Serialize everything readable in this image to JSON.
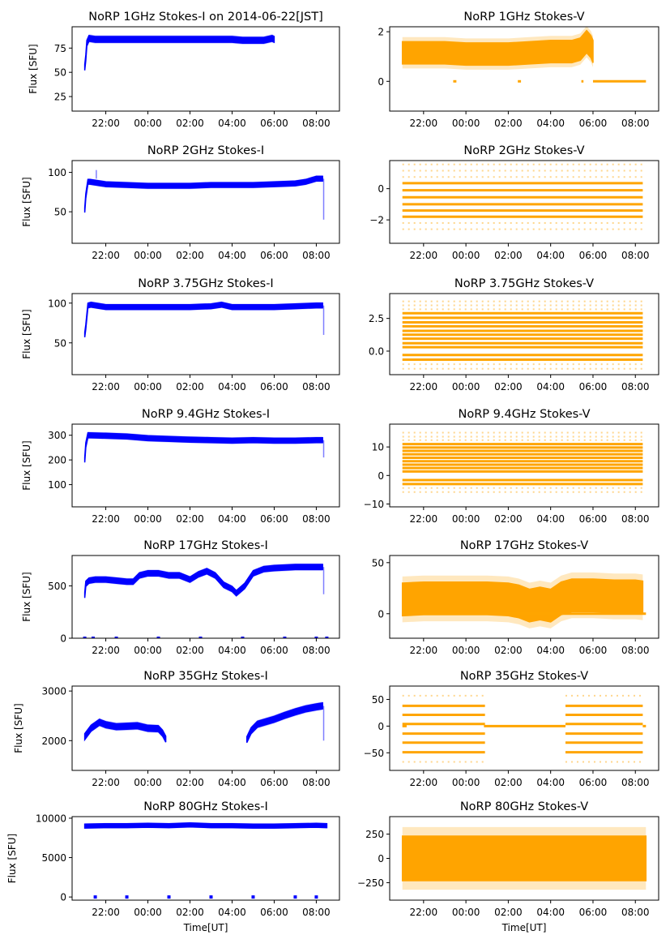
{
  "figure": {
    "xlabel": "Time[UT]",
    "ylabel": "Flux [SFU]"
  },
  "chart_data": [
    {
      "type": "scatter",
      "panel": "1GHz-I",
      "color": "#0000ff",
      "title": "NoRP 1GHz Stokes-I on 2014-06-22[JST]",
      "xlabel": "",
      "ylabel": "Flux [SFU]",
      "xticks": [
        "22:00",
        "00:00",
        "02:00",
        "04:00",
        "06:00",
        "08:00"
      ],
      "xlim_hours": [
        20.4,
        33.1
      ],
      "ylim": [
        10,
        97
      ],
      "yticks": [
        25,
        50,
        75
      ],
      "series": [
        {
          "name": "Stokes-I",
          "x_hours": [
            21.0,
            21.05,
            21.1,
            21.2,
            21.5,
            22.0,
            23.0,
            24.0,
            25.0,
            26.0,
            27.0,
            28.0,
            28.5,
            29.0,
            29.5,
            29.9,
            30.0
          ],
          "values": [
            55,
            65,
            80,
            85,
            84,
            84,
            84,
            84,
            84,
            84,
            84,
            84,
            83,
            83,
            83,
            85,
            84
          ],
          "band": 3
        }
      ],
      "dropouts": []
    },
    {
      "type": "scatter",
      "panel": "1GHz-V",
      "color": "#ffa500",
      "title": "NoRP 1GHz Stokes-V",
      "xticks": [
        "22:00",
        "00:00",
        "02:00",
        "04:00",
        "06:00",
        "08:00"
      ],
      "xlim_hours": [
        20.4,
        33.1
      ],
      "ylim": [
        -1.2,
        2.2
      ],
      "yticks": [
        0,
        2
      ],
      "series": [
        {
          "name": "Stokes-V",
          "x_hours": [
            21.0,
            22.0,
            23.0,
            24.0,
            25.0,
            26.0,
            27.0,
            28.0,
            29.0,
            29.4,
            29.7,
            29.9,
            30.0
          ],
          "values": [
            1.15,
            1.15,
            1.15,
            1.1,
            1.1,
            1.1,
            1.15,
            1.2,
            1.2,
            1.3,
            1.6,
            1.4,
            1.2
          ],
          "band": 0.45
        }
      ],
      "zero_segments": [
        [
          23.4,
          23.55
        ],
        [
          26.45,
          26.6
        ],
        [
          29.45,
          29.55
        ],
        [
          30.0,
          32.5
        ]
      ]
    },
    {
      "type": "scatter",
      "panel": "2GHz-I",
      "color": "#0000ff",
      "title": "NoRP 2GHz Stokes-I",
      "xticks": [
        "22:00",
        "00:00",
        "02:00",
        "04:00",
        "06:00",
        "08:00"
      ],
      "xlim_hours": [
        20.4,
        33.1
      ],
      "ylim": [
        10,
        115
      ],
      "yticks": [
        50,
        100
      ],
      "series": [
        {
          "name": "Stokes-I",
          "x_hours": [
            21.0,
            21.05,
            21.15,
            21.25,
            21.5,
            22.0,
            23.0,
            24.0,
            25.0,
            26.0,
            27.0,
            28.0,
            29.0,
            30.0,
            31.0,
            31.5,
            32.0,
            32.3
          ],
          "values": [
            52,
            70,
            88,
            88,
            87,
            85,
            84,
            83,
            83,
            83,
            84,
            84,
            84,
            85,
            86,
            88,
            92,
            92
          ],
          "band": 3
        }
      ],
      "spikes": [
        [
          21.55,
          103
        ],
        [
          32.35,
          40
        ]
      ]
    },
    {
      "type": "scatter",
      "panel": "2GHz-V",
      "color": "#ffa500",
      "title": "NoRP 2GHz Stokes-V",
      "xticks": [
        "22:00",
        "00:00",
        "02:00",
        "04:00",
        "06:00",
        "08:00"
      ],
      "xlim_hours": [
        20.4,
        33.1
      ],
      "ylim": [
        -3.5,
        1.8
      ],
      "yticks": [
        0,
        -2
      ],
      "levels": [
        0.35,
        -0.1,
        -0.55,
        -1.0,
        -1.4,
        -1.8
      ],
      "sparse_levels": [
        0.75,
        -2.2,
        -2.6,
        1.15,
        1.55
      ],
      "xrange_hours": [
        21.0,
        32.35
      ]
    },
    {
      "type": "scatter",
      "panel": "3.75GHz-I",
      "color": "#0000ff",
      "title": "NoRP 3.75GHz Stokes-I",
      "xticks": [
        "22:00",
        "00:00",
        "02:00",
        "04:00",
        "06:00",
        "08:00"
      ],
      "xlim_hours": [
        20.4,
        33.1
      ],
      "ylim": [
        10,
        112
      ],
      "yticks": [
        50,
        100
      ],
      "series": [
        {
          "name": "Stokes-I",
          "x_hours": [
            21.0,
            21.05,
            21.15,
            21.3,
            22.0,
            23.0,
            24.0,
            25.0,
            26.0,
            27.0,
            27.5,
            28.0,
            29.0,
            30.0,
            31.0,
            32.0,
            32.3
          ],
          "values": [
            60,
            70,
            97,
            98,
            95,
            95,
            95,
            95,
            95,
            96,
            98,
            95,
            95,
            95,
            96,
            97,
            97
          ],
          "band": 3
        }
      ],
      "spikes": [
        [
          32.35,
          60
        ]
      ]
    },
    {
      "type": "scatter",
      "panel": "3.75GHz-V",
      "color": "#ffa500",
      "title": "NoRP 3.75GHz Stokes-V",
      "xticks": [
        "22:00",
        "00:00",
        "02:00",
        "04:00",
        "06:00",
        "08:00"
      ],
      "xlim_hours": [
        20.4,
        33.1
      ],
      "ylim": [
        -1.8,
        4.4
      ],
      "yticks": [
        "0.0",
        "2.5"
      ],
      "levels": [
        2.9,
        2.55,
        2.2,
        1.9,
        1.55,
        1.25,
        0.95,
        0.6,
        0.3,
        -0.3,
        -0.65
      ],
      "sparse_levels": [
        3.2,
        3.5,
        -1.0,
        -1.35,
        3.8
      ],
      "xrange_hours": [
        21.0,
        32.35
      ]
    },
    {
      "type": "scatter",
      "panel": "9.4GHz-I",
      "color": "#0000ff",
      "title": "NoRP 9.4GHz Stokes-I",
      "xticks": [
        "22:00",
        "00:00",
        "02:00",
        "04:00",
        "06:00",
        "08:00"
      ],
      "xlim_hours": [
        20.4,
        33.1
      ],
      "ylim": [
        10,
        345
      ],
      "yticks": [
        100,
        200,
        300
      ],
      "series": [
        {
          "name": "Stokes-I",
          "x_hours": [
            21.0,
            21.05,
            21.15,
            22.0,
            23.0,
            24.0,
            25.0,
            26.0,
            27.0,
            28.0,
            29.0,
            30.0,
            31.0,
            32.0,
            32.3
          ],
          "values": [
            200,
            260,
            300,
            298,
            295,
            288,
            285,
            282,
            280,
            278,
            280,
            278,
            278,
            280,
            280
          ],
          "band": 10
        }
      ],
      "spikes": [
        [
          32.35,
          210
        ]
      ]
    },
    {
      "type": "scatter",
      "panel": "9.4GHz-V",
      "color": "#ffa500",
      "title": "NoRP 9.4GHz Stokes-V",
      "xticks": [
        "22:00",
        "00:00",
        "02:00",
        "04:00",
        "06:00",
        "08:00"
      ],
      "xlim_hours": [
        20.4,
        33.1
      ],
      "ylim": [
        -11,
        18
      ],
      "yticks": [
        -10,
        0,
        10
      ],
      "levels": [
        11,
        9.8,
        8.6,
        7.4,
        6.2,
        5,
        3.8,
        2.6,
        1.4,
        -1.6,
        -3
      ],
      "sparse_levels": [
        12.4,
        13.6,
        -4.4,
        -5.8,
        15
      ],
      "xrange_hours": [
        21.0,
        32.35
      ]
    },
    {
      "type": "scatter",
      "panel": "17GHz-I",
      "color": "#0000ff",
      "title": "NoRP 17GHz Stokes-I",
      "xticks": [
        "22:00",
        "00:00",
        "02:00",
        "04:00",
        "06:00",
        "08:00"
      ],
      "xlim_hours": [
        20.4,
        33.1
      ],
      "ylim": [
        0,
        790
      ],
      "yticks": [
        0,
        500
      ],
      "series": [
        {
          "name": "Stokes-I",
          "x_hours": [
            21.0,
            21.05,
            21.2,
            21.5,
            22.0,
            22.5,
            23.0,
            23.3,
            23.6,
            24.0,
            24.5,
            25.0,
            25.5,
            26.0,
            26.4,
            26.8,
            27.2,
            27.6,
            28.0,
            28.2,
            28.6,
            29.0,
            29.5,
            30.0,
            31.0,
            32.0,
            32.3
          ],
          "values": [
            410,
            520,
            550,
            560,
            560,
            550,
            540,
            540,
            600,
            620,
            620,
            600,
            600,
            560,
            610,
            640,
            600,
            510,
            470,
            430,
            500,
            620,
            660,
            670,
            680,
            680,
            680
          ],
          "band": 25
        }
      ],
      "dropouts": [
        21.0,
        21.4,
        22.5,
        24.5,
        26.5,
        28.5,
        30.5,
        32.0,
        32.5
      ],
      "spikes": [
        [
          32.35,
          420
        ]
      ]
    },
    {
      "type": "scatter",
      "panel": "17GHz-V",
      "color": "#ffa500",
      "title": "NoRP 17GHz Stokes-V",
      "xticks": [
        "22:00",
        "00:00",
        "02:00",
        "04:00",
        "06:00",
        "08:00"
      ],
      "xlim_hours": [
        20.4,
        33.1
      ],
      "ylim": [
        -24,
        57
      ],
      "yticks": [
        0,
        50
      ],
      "series": [
        {
          "name": "Stokes-V",
          "x_hours": [
            21.0,
            22.0,
            23.0,
            24.0,
            25.0,
            26.0,
            26.5,
            27.0,
            27.5,
            28.0,
            28.5,
            29.0,
            30.0,
            31.0,
            32.0,
            32.35
          ],
          "values": [
            14,
            15,
            15,
            15,
            15,
            14,
            12,
            8,
            10,
            8,
            15,
            18,
            18,
            17,
            17,
            16
          ],
          "band": 16
        }
      ],
      "zero_segments": [
        [
          21.0,
          32.5
        ]
      ]
    },
    {
      "type": "scatter",
      "panel": "35GHz-I",
      "color": "#0000ff",
      "title": "NoRP 35GHz Stokes-I",
      "xticks": [
        "22:00",
        "00:00",
        "02:00",
        "04:00",
        "06:00",
        "08:00"
      ],
      "xlim_hours": [
        20.4,
        33.1
      ],
      "ylim": [
        1400,
        3100
      ],
      "yticks": [
        2000,
        3000
      ],
      "series": [
        {
          "name": "Stokes-I seg1",
          "x_hours": [
            21.0,
            21.3,
            21.7,
            22.0,
            22.5,
            23.0,
            23.5,
            24.0,
            24.5,
            24.7,
            24.85
          ],
          "values": [
            2080,
            2250,
            2370,
            2320,
            2280,
            2290,
            2300,
            2250,
            2240,
            2150,
            2030
          ],
          "band": 60
        },
        {
          "name": "Stokes-I seg2",
          "x_hours": [
            28.7,
            28.9,
            29.2,
            29.6,
            30.0,
            30.5,
            31.0,
            31.5,
            32.0,
            32.3
          ],
          "values": [
            2020,
            2200,
            2330,
            2380,
            2430,
            2510,
            2580,
            2640,
            2680,
            2700
          ],
          "band": 60
        }
      ],
      "spikes": [
        [
          32.35,
          2000
        ]
      ]
    },
    {
      "type": "scatter",
      "panel": "35GHz-V",
      "color": "#ffa500",
      "title": "NoRP 35GHz Stokes-V",
      "xticks": [
        "22:00",
        "00:00",
        "02:00",
        "04:00",
        "06:00",
        "08:00"
      ],
      "xlim_hours": [
        20.4,
        33.1
      ],
      "ylim": [
        -83,
        75
      ],
      "yticks": [
        -50,
        0,
        50
      ],
      "levels": [
        38,
        21,
        4,
        -14,
        -31,
        -49
      ],
      "sparse_levels": [
        57,
        -67
      ],
      "xranges_hours": [
        [
          21.0,
          24.9
        ],
        [
          28.7,
          32.35
        ]
      ],
      "zero_segments": [
        [
          21.0,
          21.2
        ],
        [
          24.85,
          28.7
        ],
        [
          32.35,
          32.5
        ]
      ]
    },
    {
      "type": "scatter",
      "panel": "80GHz-I",
      "color": "#0000ff",
      "title": "NoRP 80GHz Stokes-I",
      "xlabel": "Time[UT]",
      "xticks": [
        "22:00",
        "00:00",
        "02:00",
        "04:00",
        "06:00",
        "08:00"
      ],
      "xlim_hours": [
        20.4,
        33.1
      ],
      "ylim": [
        -400,
        10200
      ],
      "yticks": [
        0,
        5000,
        10000
      ],
      "series": [
        {
          "name": "Stokes-I",
          "x_hours": [
            21.0,
            22.0,
            23.0,
            24.0,
            25.0,
            26.0,
            27.0,
            28.0,
            29.0,
            30.0,
            31.0,
            32.0,
            32.5
          ],
          "values": [
            9000,
            9050,
            9050,
            9100,
            9050,
            9150,
            9050,
            9050,
            9000,
            9000,
            9050,
            9100,
            9050
          ],
          "band": 250
        }
      ],
      "dropouts": [
        21.5,
        23.0,
        25.0,
        27.0,
        29.0,
        31.0,
        32.0
      ]
    },
    {
      "type": "scatter",
      "panel": "80GHz-V",
      "color": "#ffa500",
      "title": "NoRP 80GHz Stokes-V",
      "xlabel": "Time[UT]",
      "xticks": [
        "22:00",
        "00:00",
        "02:00",
        "04:00",
        "06:00",
        "08:00"
      ],
      "xlim_hours": [
        20.4,
        33.1
      ],
      "ylim": [
        -430,
        430
      ],
      "yticks": [
        -250,
        0,
        250
      ],
      "series": [
        {
          "name": "Stokes-V",
          "x_hours": [
            21.0,
            22.0,
            23.0,
            24.0,
            25.0,
            26.0,
            27.0,
            28.0,
            29.0,
            30.0,
            31.0,
            32.0,
            32.5
          ],
          "values": [
            0,
            0,
            0,
            0,
            0,
            0,
            0,
            0,
            0,
            0,
            0,
            0,
            0
          ],
          "band": 230
        }
      ]
    }
  ]
}
